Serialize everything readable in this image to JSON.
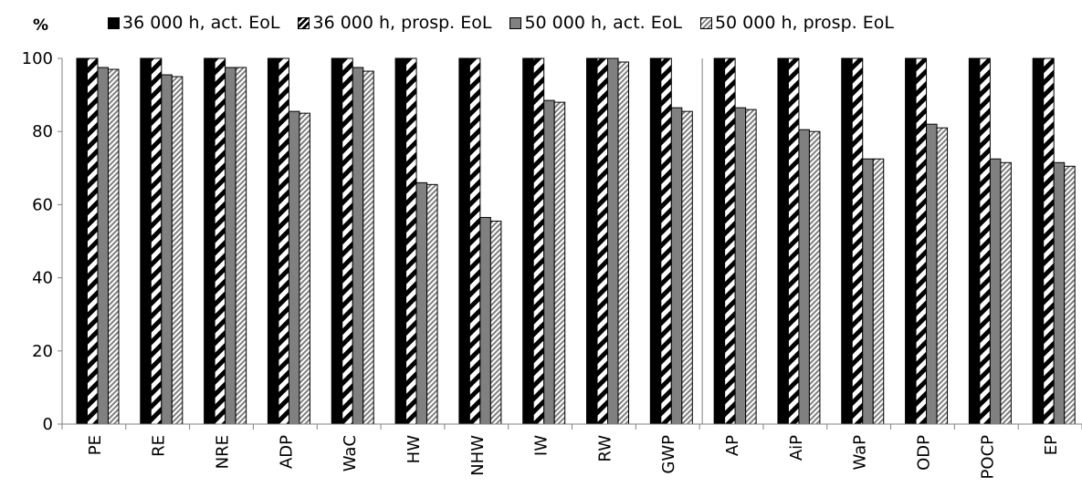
{
  "chart_data": {
    "type": "bar",
    "unit_label": "%",
    "categories": [
      "PE",
      "RE",
      "NRE",
      "ADP",
      "WaC",
      "HW",
      "NHW",
      "IW",
      "RW",
      "GWP",
      "AP",
      "AiP",
      "WaP",
      "ODP",
      "POCP",
      "EP"
    ],
    "series": [
      {
        "name": "36 000 h, act. EoL",
        "pattern": "solid-black",
        "values": [
          100,
          100,
          100,
          100,
          100,
          100,
          100,
          100,
          100,
          100,
          100,
          100,
          100,
          100,
          100,
          100
        ]
      },
      {
        "name": "36 000 h, prosp. EoL",
        "pattern": "diagonal-black",
        "values": [
          100,
          100,
          100,
          100,
          100,
          100,
          100,
          100,
          100,
          100,
          100,
          100,
          100,
          100,
          100,
          100
        ]
      },
      {
        "name": "50 000 h, act. EoL",
        "pattern": "solid-gray",
        "values": [
          97.5,
          95.5,
          97.5,
          85.5,
          97.5,
          66,
          56.5,
          88.5,
          100,
          86.5,
          86.5,
          80.5,
          72.5,
          82,
          72.5,
          71.5
        ]
      },
      {
        "name": "50 000 h, prosp. EoL",
        "pattern": "diagonal-gray",
        "values": [
          97,
          95,
          97.5,
          85,
          96.5,
          65.5,
          55.5,
          88,
          99,
          85.5,
          86,
          80,
          72.5,
          81,
          71.5,
          70.5
        ]
      }
    ],
    "yticks": [
      0,
      20,
      40,
      60,
      80,
      100
    ],
    "ylim": [
      0,
      100
    ],
    "separator_after_category": "GWP",
    "xlabel": "",
    "ylabel": "%",
    "legend_position": "top",
    "grid": false,
    "colors": {
      "black": "#000000",
      "gray": "#808080",
      "axis": "#808080"
    }
  }
}
